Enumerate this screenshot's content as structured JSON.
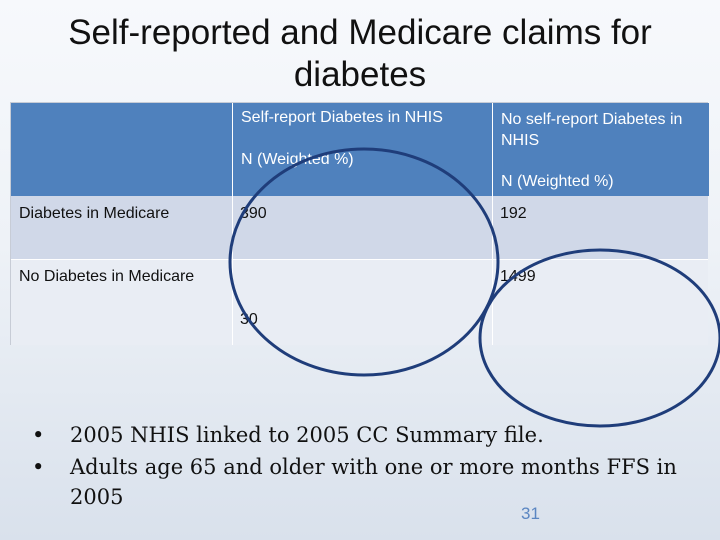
{
  "slide": {
    "title": "Self-reported and Medicare claims for diabetes",
    "page_number": "31"
  },
  "table": {
    "col1_header": "Self-report Diabetes in NHIS",
    "col1_sub": "N (Weighted %)",
    "col2_header": "No self-report Diabetes in NHIS",
    "col2_sub": "N (Weighted %)",
    "rows": [
      {
        "label": "Diabetes in Medicare",
        "val1": "390",
        "val2": "192"
      },
      {
        "label": "No Diabetes in Medicare",
        "val1": "30",
        "val2": "1499"
      }
    ]
  },
  "bullets": [
    "2005 NHIS linked to 2005 CC Summary file.",
    "Adults age 65 and older with one or more months FFS in 2005"
  ],
  "bullet_symbol": "•",
  "colors": {
    "header_bg": "#4f81bd",
    "row1_bg": "#d0d8e8",
    "row2_bg": "#e9edf4",
    "oval_stroke": "#1f3d7a",
    "page_number": "#5b86c2"
  }
}
